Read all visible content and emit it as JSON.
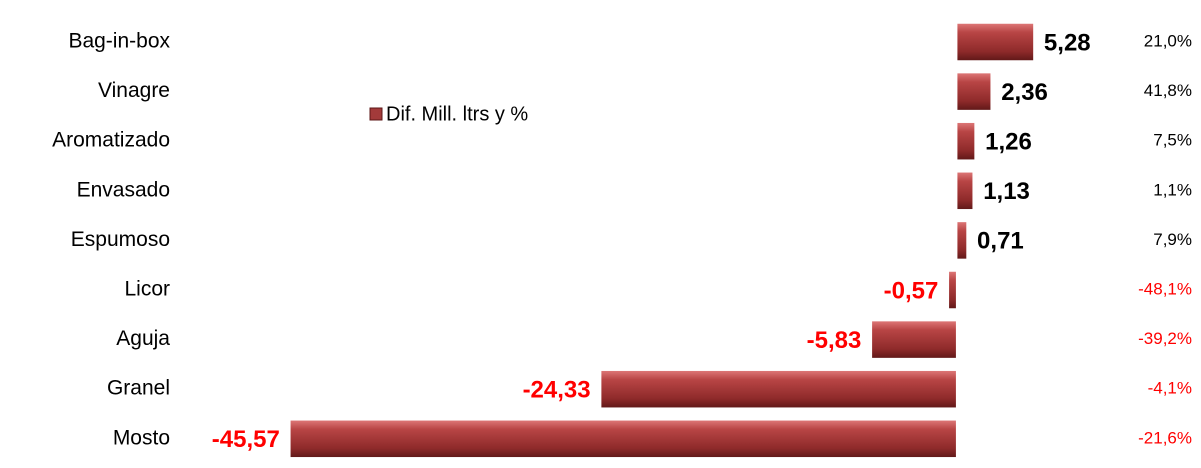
{
  "chart_data": {
    "type": "bar",
    "orientation": "horizontal",
    "legend": "Dif. Mill. ltrs y %",
    "legend_position": "upper-left",
    "categories": [
      "Bag-in-box",
      "Vinagre",
      "Aromatizado",
      "Envasado",
      "Espumoso",
      "Licor",
      "Aguja",
      "Granel",
      "Mosto"
    ],
    "values": [
      5.28,
      2.36,
      1.26,
      1.13,
      0.71,
      -0.57,
      -5.83,
      -24.33,
      -45.57
    ],
    "value_labels": [
      "5,28",
      "2,36",
      "1,26",
      "1,13",
      "0,71",
      "-0,57",
      "-5,83",
      "-24,33",
      "-45,57"
    ],
    "color": "#a33a3a",
    "negative_label_color": "#ff0000",
    "xlim": [
      -50,
      10
    ],
    "change_pct": {
      "values": [
        21.0,
        41.8,
        7.5,
        1.1,
        7.9,
        -48.1,
        -39.2,
        -4.1,
        -21.6
      ],
      "value_labels": [
        "21,0%",
        "41,8%",
        "7,5%",
        "1,1%",
        "7,9%",
        "-48,1%",
        "-39,2%",
        "-4,1%",
        "-21,6%"
      ]
    }
  }
}
